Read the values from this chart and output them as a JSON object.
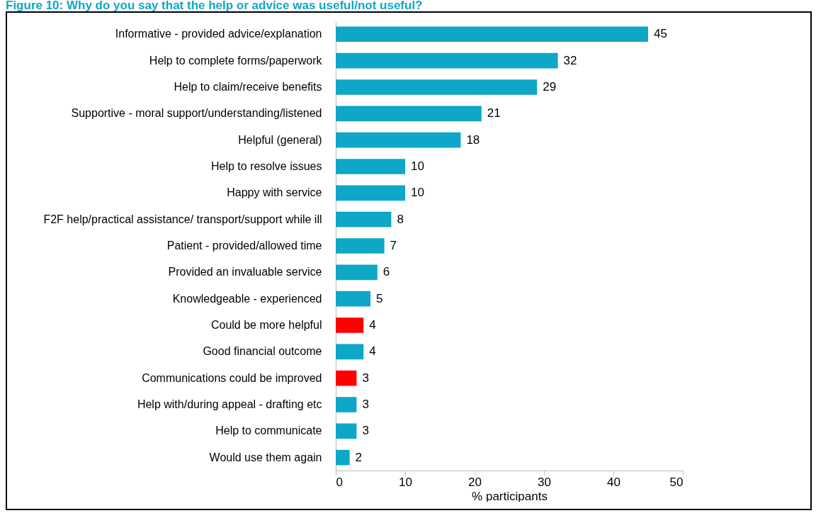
{
  "chart_data": {
    "type": "bar",
    "orientation": "horizontal",
    "title": "Figure 10: Why do you say that the help or advice was useful/not useful?",
    "xlabel": "% participants",
    "categories": [
      "Informative - provided advice/explanation",
      "Help to complete forms/paperwork",
      "Help to claim/receive benefits",
      "Supportive - moral support/understanding/listened",
      "Helpful (general)",
      "Help to resolve issues",
      "Happy with service",
      "F2F help/practical assistance/ transport/support while ill",
      "Patient - provided/allowed time",
      "Provided an invaluable service",
      "Knowledgeable - experienced",
      "Could be more helpful",
      "Good financial outcome",
      "Communications could be improved",
      "Help with/during appeal - drafting etc",
      "Help to communicate",
      "Would use them again"
    ],
    "values": [
      45,
      32,
      29,
      21,
      18,
      10,
      10,
      8,
      7,
      6,
      5,
      4,
      4,
      3,
      3,
      3,
      2
    ],
    "colors": [
      "#0ea7c7",
      "#0ea7c7",
      "#0ea7c7",
      "#0ea7c7",
      "#0ea7c7",
      "#0ea7c7",
      "#0ea7c7",
      "#0ea7c7",
      "#0ea7c7",
      "#0ea7c7",
      "#0ea7c7",
      "#ff0000",
      "#0ea7c7",
      "#ff0000",
      "#0ea7c7",
      "#0ea7c7",
      "#0ea7c7"
    ],
    "xlim": [
      0,
      50
    ],
    "xticks": [
      0,
      10,
      20,
      30,
      40,
      50
    ],
    "data_labels": true,
    "grid": false
  }
}
